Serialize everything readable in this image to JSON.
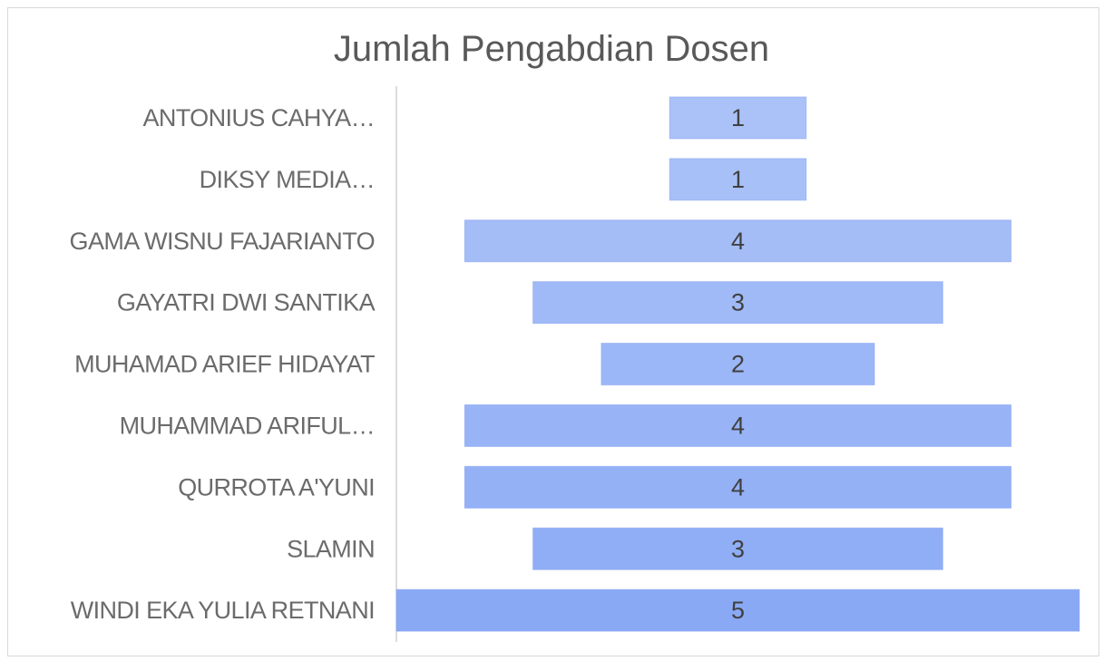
{
  "chart_data": {
    "type": "funnel",
    "title": "Jumlah Pengabdian Dosen",
    "categories": [
      "ANTONIUS CAHYA…",
      "DIKSY MEDIA…",
      "GAMA WISNU FAJARIANTO",
      "GAYATRI DWI SANTIKA",
      "MUHAMAD ARIEF HIDAYAT",
      "MUHAMMAD ARIFUL…",
      "QURROTA A'YUNI",
      "SLAMIN",
      "WINDI EKA YULIA RETNANI"
    ],
    "values": [
      1,
      1,
      4,
      3,
      2,
      4,
      4,
      3,
      5
    ],
    "colors": [
      "#aac2f8",
      "#a8c0f8",
      "#a4bdf7",
      "#a0baf7",
      "#9cb7f7",
      "#98b4f6",
      "#94b1f6",
      "#90aef6",
      "#8aa9f5"
    ]
  }
}
